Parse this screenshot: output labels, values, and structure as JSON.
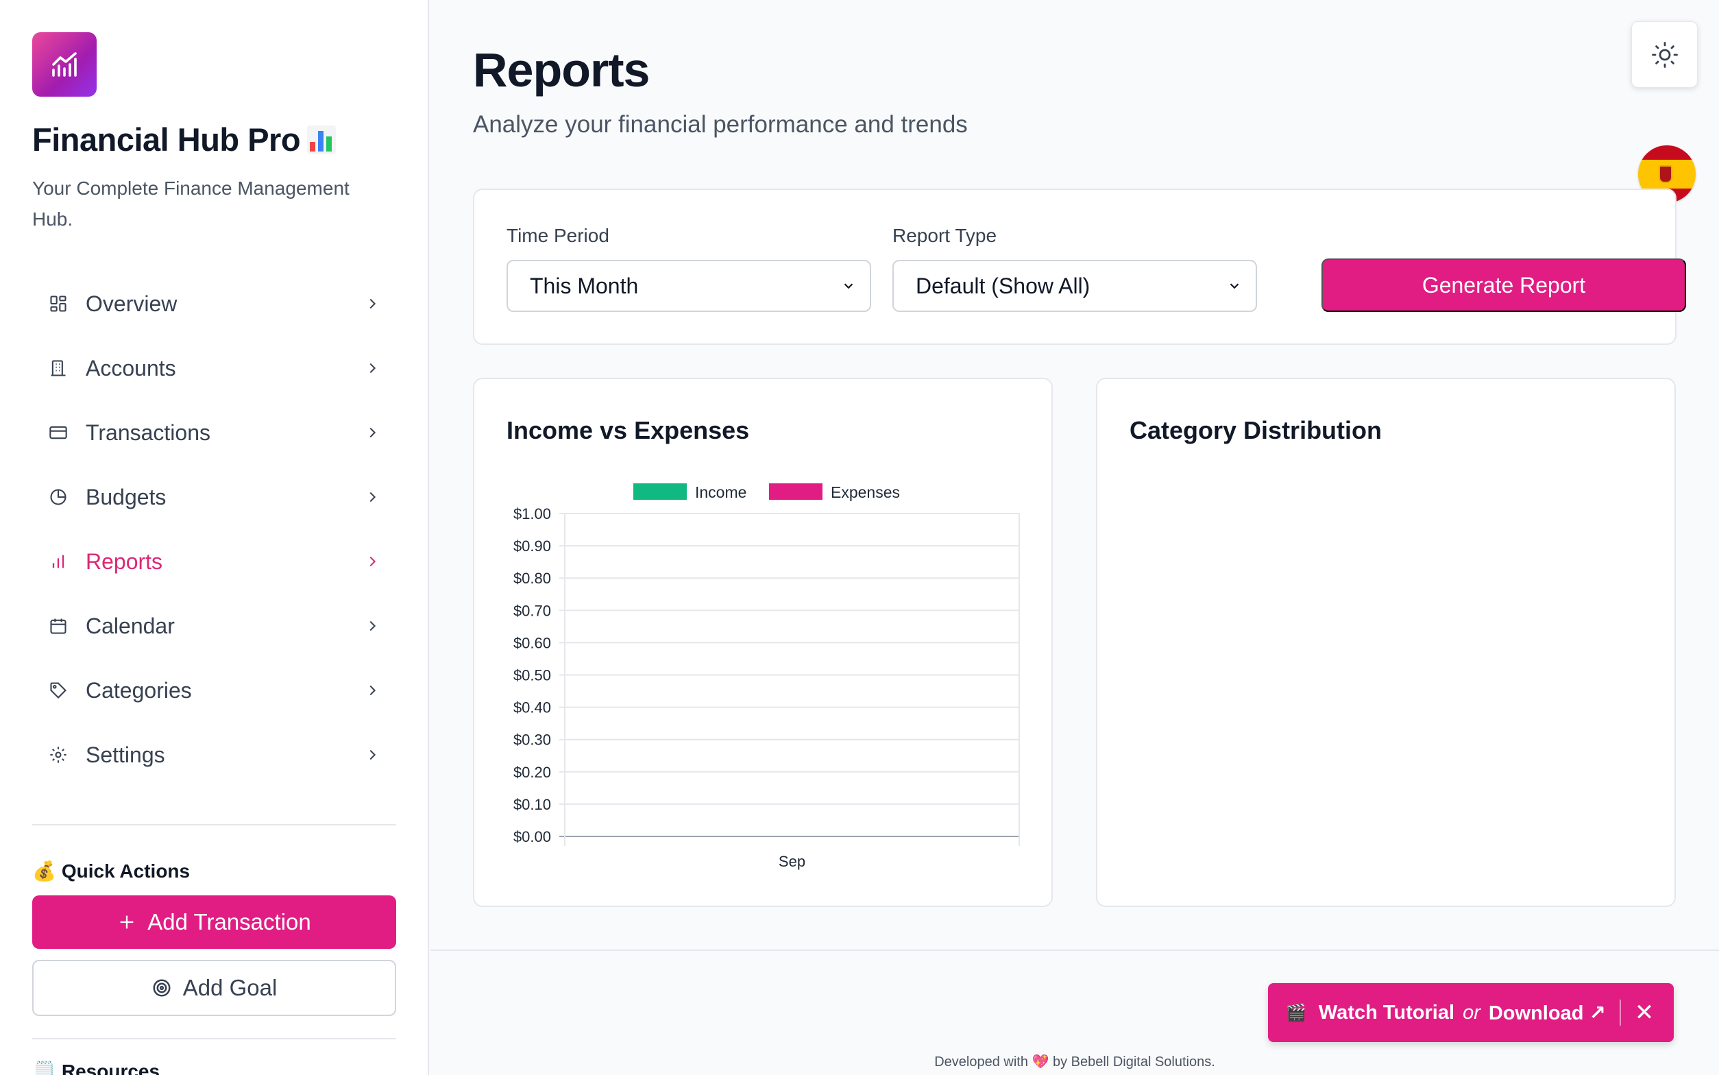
{
  "app": {
    "title": "Financial Hub Pro",
    "subtitle": "Your Complete Finance Management Hub."
  },
  "sidebar": {
    "items": [
      {
        "label": "Overview",
        "icon": "grid-icon"
      },
      {
        "label": "Accounts",
        "icon": "building-icon"
      },
      {
        "label": "Transactions",
        "icon": "credit-card-icon"
      },
      {
        "label": "Budgets",
        "icon": "pie-chart-icon"
      },
      {
        "label": "Reports",
        "icon": "bar-chart-icon",
        "active": true
      },
      {
        "label": "Calendar",
        "icon": "calendar-icon"
      },
      {
        "label": "Categories",
        "icon": "tag-icon"
      },
      {
        "label": "Settings",
        "icon": "gear-icon"
      }
    ],
    "quick_actions_title": "Quick Actions",
    "add_transaction_label": "Add Transaction",
    "add_goal_label": "Add Goal",
    "resources_title": "Resources"
  },
  "page": {
    "title": "Reports",
    "subtitle": "Analyze your financial performance and trends"
  },
  "filters": {
    "time_period_label": "Time Period",
    "time_period_value": "This Month",
    "report_type_label": "Report Type",
    "report_type_value": "Default (Show All)",
    "generate_label": "Generate Report"
  },
  "income_chart": {
    "title": "Income vs Expenses"
  },
  "category_chart": {
    "title": "Category Distribution"
  },
  "chart_data": {
    "type": "bar",
    "categories": [
      "Sep"
    ],
    "series": [
      {
        "name": "Income",
        "values": [
          0
        ],
        "color": "#10b981"
      },
      {
        "name": "Expenses",
        "values": [
          0
        ],
        "color": "#e11d84"
      }
    ],
    "yticks": [
      "$1.00",
      "$0.90",
      "$0.80",
      "$0.70",
      "$0.60",
      "$0.50",
      "$0.40",
      "$0.30",
      "$0.20",
      "$0.10",
      "$0.00"
    ],
    "ylim": [
      0,
      1
    ],
    "legend": "top",
    "grid": true
  },
  "footer": {
    "text": "Developed with 💖 by Bebell Digital Solutions."
  },
  "banner": {
    "watch_label": "Watch Tutorial",
    "or_label": "or",
    "download_label": "Download ↗"
  },
  "colors": {
    "accent": "#e11d84",
    "income": "#10b981"
  }
}
